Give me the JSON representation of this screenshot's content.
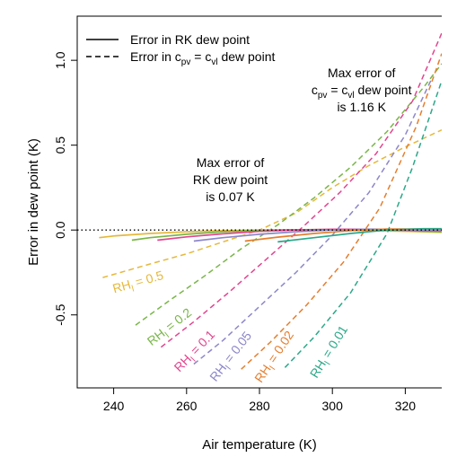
{
  "chart_data": {
    "type": "line",
    "xlabel": "Air temperature (K)",
    "ylabel": "Error in dew point (K)",
    "xlim": [
      230,
      330
    ],
    "ylim": [
      -0.93,
      1.26
    ],
    "xticks": [
      240,
      260,
      280,
      300,
      320
    ],
    "yticks": [
      -0.5,
      0.0,
      0.5,
      1.0
    ],
    "xtick_labels": [
      "240",
      "260",
      "280",
      "300",
      "320"
    ],
    "ytick_labels": [
      "-0.5",
      "0.0",
      "0.5",
      "1.0"
    ],
    "grid": false,
    "legend_position": "top-left",
    "legend": [
      {
        "label": "Error in RK dew point",
        "style": "solid"
      },
      {
        "label": "Error in c",
        "sub1": "pv",
        "mid": " = c",
        "sub2": "vl",
        "tail": " dew point",
        "style": "dashed"
      }
    ],
    "annotations": [
      {
        "lines": [
          "Max error of",
          "RK dew point",
          "is 0.07 K"
        ],
        "x": 272,
        "y": 0.37
      },
      {
        "lines": [
          "Max error of",
          "c|pv| = c|vl| dew point",
          "is 1.16 K"
        ],
        "x": 308,
        "y": 0.9
      }
    ],
    "zero_line": {
      "y": 0,
      "style": "dotted"
    },
    "series": [
      {
        "rh_value": "0.5",
        "color": "#e6b83a",
        "label_x": 247,
        "label_y": -0.33,
        "label_angle": -16,
        "dashed_points": [
          [
            237,
            -0.28
          ],
          [
            250,
            -0.2
          ],
          [
            260,
            -0.14
          ],
          [
            270,
            -0.07
          ],
          [
            280,
            0.0
          ],
          [
            290,
            0.1
          ],
          [
            300,
            0.25
          ],
          [
            310,
            0.38
          ],
          [
            320,
            0.49
          ],
          [
            330,
            0.59
          ]
        ],
        "solid_points": [
          [
            236,
            -0.045
          ],
          [
            240,
            -0.035
          ],
          [
            250,
            -0.02
          ],
          [
            260,
            -0.01
          ],
          [
            270,
            -0.004
          ],
          [
            280,
            0.0
          ],
          [
            290,
            0.001
          ],
          [
            300,
            0.0
          ],
          [
            310,
            -0.003
          ],
          [
            320,
            -0.008
          ],
          [
            330,
            -0.014
          ]
        ]
      },
      {
        "rh_value": "0.2",
        "color": "#79b648",
        "label_x": 256,
        "label_y": -0.59,
        "label_angle": -38,
        "dashed_points": [
          [
            246,
            -0.56
          ],
          [
            255,
            -0.42
          ],
          [
            265,
            -0.27
          ],
          [
            275,
            -0.11
          ],
          [
            285,
            0.03
          ],
          [
            295,
            0.19
          ],
          [
            305,
            0.37
          ],
          [
            315,
            0.58
          ],
          [
            325,
            0.84
          ],
          [
            330,
            0.98
          ]
        ],
        "solid_points": [
          [
            245,
            -0.06
          ],
          [
            250,
            -0.045
          ],
          [
            260,
            -0.025
          ],
          [
            270,
            -0.01
          ],
          [
            280,
            -0.002
          ],
          [
            290,
            0.002
          ],
          [
            300,
            0.003
          ],
          [
            310,
            0.001
          ],
          [
            320,
            -0.004
          ],
          [
            330,
            -0.01
          ]
        ]
      },
      {
        "rh_value": "0.1",
        "color": "#e2458e",
        "label_x": 263,
        "label_y": -0.73,
        "label_angle": -46,
        "dashed_points": [
          [
            253,
            -0.69
          ],
          [
            262,
            -0.54
          ],
          [
            272,
            -0.36
          ],
          [
            282,
            -0.17
          ],
          [
            292,
            0.02
          ],
          [
            302,
            0.22
          ],
          [
            312,
            0.45
          ],
          [
            322,
            0.76
          ],
          [
            330,
            1.16
          ]
        ],
        "solid_points": [
          [
            252,
            -0.06
          ],
          [
            260,
            -0.04
          ],
          [
            270,
            -0.022
          ],
          [
            280,
            -0.008
          ],
          [
            290,
            0.0
          ],
          [
            300,
            0.004
          ],
          [
            310,
            0.004
          ],
          [
            320,
            0.0
          ],
          [
            330,
            -0.006
          ]
        ]
      },
      {
        "rh_value": "0.05",
        "color": "#8c87c9",
        "label_x": 273,
        "label_y": -0.76,
        "label_angle": -52,
        "dashed_points": [
          [
            262,
            -0.79
          ],
          [
            270,
            -0.65
          ],
          [
            280,
            -0.45
          ],
          [
            290,
            -0.25
          ],
          [
            300,
            -0.03
          ],
          [
            310,
            0.22
          ],
          [
            320,
            0.56
          ],
          [
            327,
            0.88
          ]
        ],
        "solid_points": [
          [
            262,
            -0.065
          ],
          [
            270,
            -0.045
          ],
          [
            280,
            -0.025
          ],
          [
            290,
            -0.01
          ],
          [
            300,
            0.0
          ],
          [
            310,
            0.005
          ],
          [
            320,
            0.003
          ],
          [
            330,
            -0.003
          ]
        ]
      },
      {
        "rh_value": "0.02",
        "color": "#e57e2e",
        "label_x": 285,
        "label_y": -0.76,
        "label_angle": -56,
        "dashed_points": [
          [
            275,
            -0.82
          ],
          [
            283,
            -0.66
          ],
          [
            293,
            -0.44
          ],
          [
            303,
            -0.19
          ],
          [
            313,
            0.13
          ],
          [
            323,
            0.61
          ],
          [
            330,
            1.04
          ]
        ],
        "solid_points": [
          [
            276,
            -0.065
          ],
          [
            285,
            -0.042
          ],
          [
            295,
            -0.02
          ],
          [
            305,
            -0.004
          ],
          [
            315,
            0.006
          ],
          [
            325,
            0.006
          ],
          [
            330,
            0.004
          ]
        ]
      },
      {
        "rh_value": "0.01",
        "color": "#2ba888",
        "label_x": 300,
        "label_y": -0.73,
        "label_angle": -58,
        "dashed_points": [
          [
            287,
            -0.81
          ],
          [
            295,
            -0.63
          ],
          [
            305,
            -0.37
          ],
          [
            315,
            -0.02
          ],
          [
            322,
            0.37
          ],
          [
            330,
            0.88
          ]
        ],
        "solid_points": [
          [
            285,
            -0.07
          ],
          [
            295,
            -0.045
          ],
          [
            305,
            -0.02
          ],
          [
            315,
            0.0
          ],
          [
            325,
            0.008
          ],
          [
            330,
            0.008
          ]
        ]
      }
    ],
    "rh_prefix": "RH",
    "rh_subscript": "l",
    "rh_eq": " = "
  }
}
